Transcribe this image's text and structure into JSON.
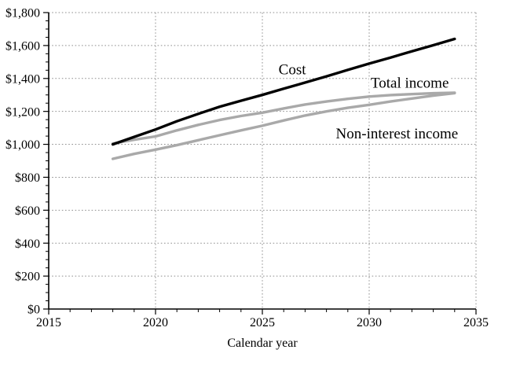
{
  "chart_data": {
    "type": "line",
    "title": "",
    "xlabel": "Calendar year",
    "ylabel": "",
    "xlim": [
      2015,
      2035
    ],
    "ylim": [
      0,
      1800
    ],
    "grid": "dotted",
    "legend_position": "none",
    "x_minor_step": 1,
    "y_minor_step": 50,
    "x": [
      2018,
      2019,
      2020,
      2021,
      2022,
      2023,
      2024,
      2025,
      2026,
      2027,
      2028,
      2029,
      2030,
      2031,
      2032,
      2033,
      2034
    ],
    "series": [
      {
        "name": "Cost",
        "color": "#000000",
        "width": 3.4,
        "values": [
          1000,
          1045,
          1090,
          1140,
          1185,
          1228,
          1265,
          1300,
          1338,
          1375,
          1413,
          1452,
          1490,
          1527,
          1565,
          1602,
          1640
        ]
      },
      {
        "name": "Total income",
        "color": "#a9a9a9",
        "width": 3.4,
        "values": [
          1005,
          1028,
          1048,
          1085,
          1118,
          1148,
          1172,
          1192,
          1218,
          1242,
          1260,
          1276,
          1290,
          1299,
          1305,
          1310,
          1313
        ]
      },
      {
        "name": "Non-interest income",
        "color": "#a9a9a9",
        "width": 3.4,
        "values": [
          912,
          942,
          968,
          995,
          1025,
          1055,
          1085,
          1113,
          1145,
          1175,
          1200,
          1222,
          1240,
          1260,
          1278,
          1296,
          1311
        ]
      }
    ],
    "x_ticks": [
      {
        "value": 2015,
        "label": "2015"
      },
      {
        "value": 2020,
        "label": "2020"
      },
      {
        "value": 2025,
        "label": "2025"
      },
      {
        "value": 2030,
        "label": "2030"
      },
      {
        "value": 2035,
        "label": "2035"
      }
    ],
    "y_ticks": [
      {
        "value": 0,
        "label": "$0"
      },
      {
        "value": 200,
        "label": "$200"
      },
      {
        "value": 400,
        "label": "$400"
      },
      {
        "value": 600,
        "label": "$600"
      },
      {
        "value": 800,
        "label": "$800"
      },
      {
        "value": 1000,
        "label": "$1,000"
      },
      {
        "value": 1200,
        "label": "$1,200"
      },
      {
        "value": 1400,
        "label": "$1,400"
      },
      {
        "value": 1600,
        "label": "$1,600"
      },
      {
        "value": 1800,
        "label": "$1,800"
      }
    ],
    "annotations": [
      {
        "text": "Cost",
        "x": 2026.4,
        "y": 1456
      },
      {
        "text": "Total income",
        "x": 2031.9,
        "y": 1375
      },
      {
        "text": "Non-interest income",
        "x": 2031.3,
        "y": 1067
      }
    ],
    "colors": {
      "cost": "#000000",
      "income": "#a9a9a9",
      "grid": "#8f8f8f",
      "axis": "#000000",
      "background": "#ffffff"
    }
  }
}
